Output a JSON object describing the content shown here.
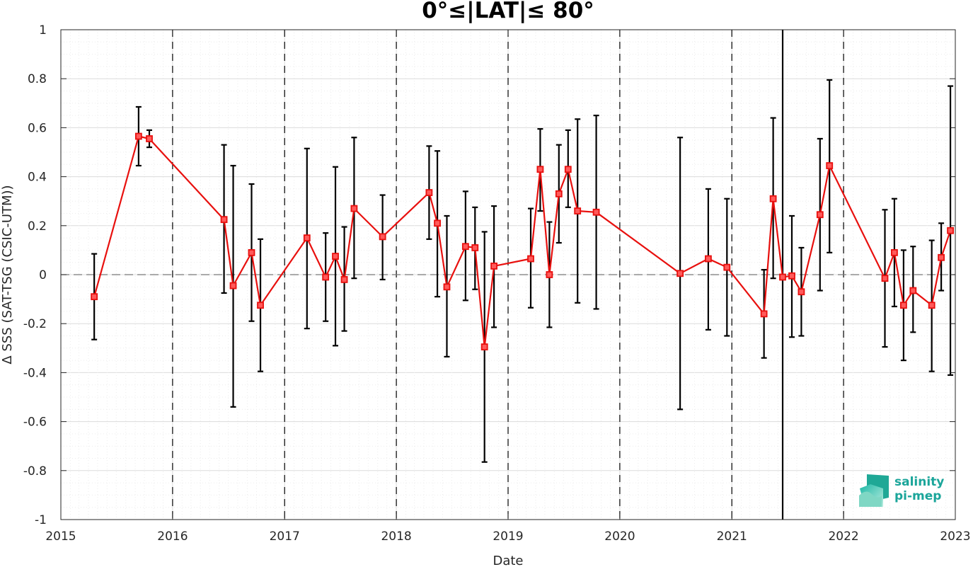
{
  "chart_data": {
    "type": "line",
    "title": "0°≤|LAT|≤ 80°",
    "xlabel": "Date",
    "ylabel": "Δ SSS (SAT-TSG (CSIC-UTM))",
    "xlim": [
      "2015-01-01",
      "2023-01-01"
    ],
    "ylim": [
      -1,
      1
    ],
    "x_ticks": [
      "2015",
      "2016",
      "2017",
      "2018",
      "2019",
      "2020",
      "2021",
      "2022",
      "2023"
    ],
    "y_ticks": [
      "1",
      "0.8",
      "0.6",
      "0.4",
      "0.2",
      "0",
      "-0.2",
      "-0.4",
      "-0.6",
      "-0.8",
      "-1"
    ],
    "year_boundaries": [
      "2016-01-01",
      "2017-01-01",
      "2018-01-01",
      "2019-01-01",
      "2020-01-01",
      "2021-01-01",
      "2022-01-01"
    ],
    "reference_line_y": 0,
    "grid": true,
    "colors": {
      "series": "#e8100e",
      "errorbar": "#000000",
      "zero_line": "#777777",
      "boundary": "#000000"
    },
    "series": [
      {
        "x": [
          "2015-04-20",
          "2015-09-12",
          "2015-10-17",
          "2016-06-17",
          "2016-07-17",
          "2016-09-15",
          "2016-10-14",
          "2017-03-15",
          "2017-05-15",
          "2017-06-16",
          "2017-07-15",
          "2017-08-16",
          "2017-11-17",
          "2018-04-18",
          "2018-05-15",
          "2018-06-15",
          "2018-08-15",
          "2018-09-15",
          "2018-10-16",
          "2018-11-16",
          "2019-03-16",
          "2019-04-16",
          "2019-05-16",
          "2019-06-16",
          "2019-07-16",
          "2019-08-16",
          "2019-10-16",
          "2020-07-16",
          "2020-10-16",
          "2020-12-16",
          "2021-04-16",
          "2021-05-16",
          "2021-06-16",
          "2021-07-16",
          "2021-08-16",
          "2021-10-16",
          "2021-11-16",
          "2022-05-16",
          "2022-06-16",
          "2022-07-16",
          "2022-08-16",
          "2022-10-16",
          "2022-11-16",
          "2022-12-16"
        ],
        "y": [
          -0.09,
          0.565,
          0.555,
          0.225,
          -0.045,
          0.09,
          -0.125,
          0.15,
          -0.01,
          0.075,
          -0.02,
          0.27,
          0.155,
          0.335,
          0.21,
          -0.05,
          0.115,
          0.11,
          -0.295,
          0.035,
          0.065,
          0.43,
          0.0,
          0.33,
          0.43,
          0.26,
          0.255,
          0.005,
          0.065,
          0.03,
          -0.16,
          0.31,
          -0.01,
          -0.005,
          -0.07,
          0.245,
          0.445,
          -0.015,
          0.09,
          -0.125,
          -0.065,
          -0.125,
          0.07,
          0.18
        ],
        "err_low": [
          -0.265,
          0.445,
          0.52,
          -0.075,
          -0.54,
          -0.19,
          -0.395,
          -0.22,
          -0.19,
          -0.29,
          -0.23,
          -0.015,
          -0.02,
          0.145,
          -0.09,
          -0.335,
          -0.105,
          -0.06,
          -0.765,
          -0.215,
          -0.135,
          0.26,
          -0.215,
          0.13,
          0.275,
          -0.115,
          -0.14,
          -0.55,
          -0.225,
          -0.25,
          -0.34,
          -0.015,
          -1.0,
          -0.255,
          -0.25,
          -0.065,
          0.09,
          -0.295,
          -0.13,
          -0.35,
          -0.235,
          -0.395,
          -0.065,
          -0.41
        ],
        "err_high": [
          0.085,
          0.685,
          0.59,
          0.53,
          0.445,
          0.37,
          0.145,
          0.515,
          0.17,
          0.44,
          0.195,
          0.56,
          0.325,
          0.525,
          0.505,
          0.24,
          0.34,
          0.275,
          0.175,
          0.28,
          0.27,
          0.595,
          0.215,
          0.53,
          0.59,
          0.635,
          0.65,
          0.56,
          0.35,
          0.31,
          0.02,
          0.64,
          1.0,
          0.24,
          0.11,
          0.555,
          0.795,
          0.265,
          0.31,
          0.1,
          0.115,
          0.14,
          0.21,
          0.77
        ]
      }
    ]
  },
  "logo": {
    "line1": "salinity",
    "line2": "pi-mep"
  }
}
